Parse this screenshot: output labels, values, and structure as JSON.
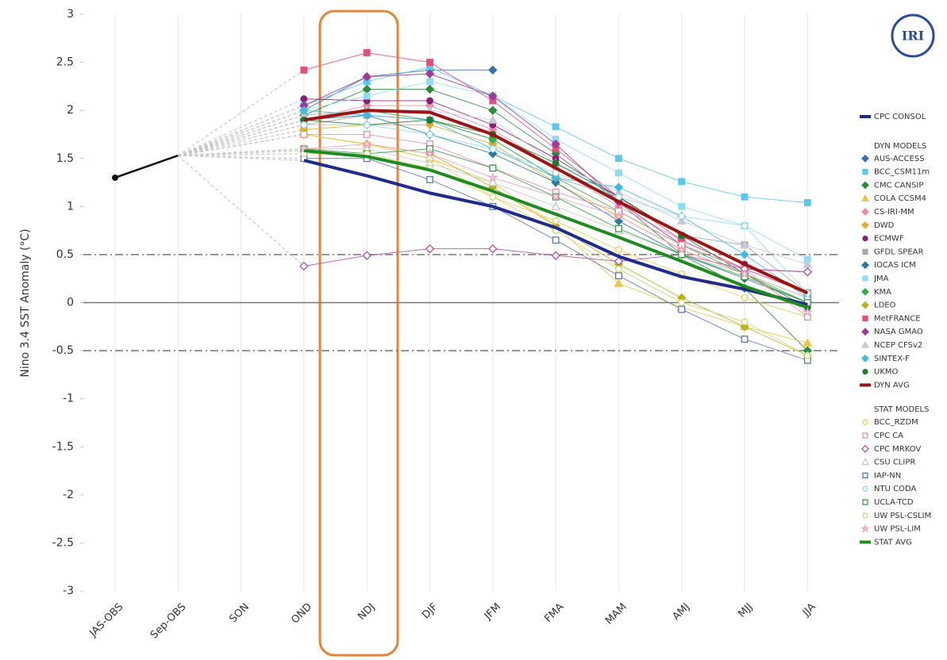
{
  "chart_data": {
    "type": "line",
    "y_label": "Nino 3.4 SST Anomaly (°C)",
    "logo": "IRI",
    "dyn_header": "DYN MODELS",
    "stat_header": "STAT MODELS",
    "categories": [
      "JAS-OBS",
      "Sep-OBS",
      "SON",
      "OND",
      "NDJ",
      "DJF",
      "JFM",
      "FMA",
      "MAM",
      "AMJ",
      "MJJ",
      "JJA"
    ],
    "ylim": [
      -3,
      3
    ],
    "yticks": [
      -3,
      -2.5,
      -2,
      -1.5,
      -1,
      -0.5,
      0,
      0.5,
      1,
      1.5,
      2,
      2.5,
      3
    ],
    "reference_lines": [
      0.5,
      -0.5
    ],
    "grid": "x",
    "observed": {
      "color": "#111111",
      "values": [
        1.3,
        1.53,
        null,
        null,
        null,
        null,
        null,
        null,
        null,
        null,
        null,
        null
      ]
    },
    "series": [
      {
        "name": "CPC CONSOL",
        "color": "#1f2a8a",
        "marker": "none",
        "width": 4,
        "values": [
          null,
          null,
          null,
          1.48,
          1.32,
          1.14,
          1.0,
          0.78,
          0.48,
          0.27,
          0.14,
          -0.02
        ]
      },
      {
        "name": "AUS-ACCESS",
        "color": "#3a6fb0",
        "marker": "diamond",
        "open": false,
        "width": 1,
        "values": [
          null,
          null,
          null,
          2.0,
          2.35,
          2.42,
          2.42,
          null,
          null,
          null,
          null,
          null
        ]
      },
      {
        "name": "BCC_CSM11m",
        "color": "#5bc8e8",
        "marker": "square",
        "open": false,
        "width": 1,
        "values": [
          null,
          null,
          null,
          2.05,
          2.3,
          2.45,
          2.15,
          1.83,
          1.5,
          1.26,
          1.1,
          1.04
        ]
      },
      {
        "name": "CMC CANSIP",
        "color": "#2e8b3e",
        "marker": "diamond",
        "open": false,
        "width": 1,
        "values": [
          null,
          null,
          null,
          1.95,
          2.22,
          2.22,
          2.0,
          1.55,
          1.05,
          0.5,
          0.15,
          -0.5
        ]
      },
      {
        "name": "COLA CCSM4",
        "color": "#e8c84a",
        "marker": "triangle",
        "open": false,
        "width": 1,
        "values": [
          null,
          null,
          null,
          1.75,
          1.65,
          1.5,
          1.25,
          0.8,
          0.2,
          -0.05,
          -0.25,
          -0.42
        ]
      },
      {
        "name": "CS-IRI-MM",
        "color": "#f08aa8",
        "marker": "diamond",
        "open": false,
        "width": 1,
        "values": [
          null,
          null,
          null,
          1.9,
          2.05,
          2.05,
          1.8,
          1.4,
          1.0,
          0.65,
          0.35,
          0.1
        ]
      },
      {
        "name": "DWD",
        "color": "#e0b030",
        "marker": "diamond",
        "open": false,
        "width": 1,
        "values": [
          null,
          null,
          null,
          1.8,
          1.85,
          1.85,
          1.65,
          1.25,
          0.9,
          0.55,
          0.3,
          0.05
        ]
      },
      {
        "name": "ECMWF",
        "color": "#8a1f7a",
        "marker": "circle",
        "open": false,
        "width": 1,
        "values": [
          null,
          null,
          null,
          2.12,
          2.1,
          2.1,
          1.85,
          1.5,
          1.1,
          0.7,
          0.4,
          0.1
        ]
      },
      {
        "name": "GFDL SPEAR",
        "color": "#a8a8a8",
        "marker": "square",
        "open": false,
        "width": 1,
        "values": [
          null,
          null,
          null,
          1.85,
          1.95,
          1.9,
          1.7,
          1.3,
          1.1,
          0.7,
          0.6,
          0.1
        ]
      },
      {
        "name": "IOCAS ICM",
        "color": "#2a7a9a",
        "marker": "diamond",
        "open": false,
        "width": 1,
        "values": [
          null,
          null,
          null,
          1.9,
          1.95,
          1.75,
          1.55,
          1.25,
          0.85,
          0.5,
          0.25,
          0.0
        ]
      },
      {
        "name": "JMA",
        "color": "#8fdcf0",
        "marker": "square",
        "open": false,
        "width": 1,
        "values": [
          null,
          null,
          null,
          2.0,
          2.15,
          2.3,
          2.15,
          1.7,
          1.35,
          1.0,
          0.8,
          0.45
        ]
      },
      {
        "name": "KMA",
        "color": "#3aaa4a",
        "marker": "diamond",
        "open": false,
        "width": 1,
        "values": [
          null,
          null,
          null,
          1.95,
          2.0,
          1.9,
          1.7,
          1.3,
          0.95,
          0.6,
          0.3,
          0.0
        ]
      },
      {
        "name": "LDEO",
        "color": "#b8b020",
        "marker": "diamond",
        "open": false,
        "width": 1,
        "values": [
          null,
          null,
          null,
          1.75,
          1.65,
          1.55,
          1.2,
          0.8,
          0.4,
          0.05,
          -0.25,
          -0.55
        ]
      },
      {
        "name": "MetFRANCE",
        "color": "#e0507a",
        "marker": "square",
        "open": false,
        "width": 1,
        "values": [
          null,
          null,
          null,
          2.42,
          2.6,
          2.5,
          2.1,
          1.6,
          1.1,
          0.65,
          0.35,
          0.1
        ]
      },
      {
        "name": "NASA GMAO",
        "color": "#a03a9a",
        "marker": "diamond",
        "open": false,
        "width": 1,
        "values": [
          null,
          null,
          null,
          2.05,
          2.35,
          2.38,
          2.15,
          1.65,
          1.05,
          0.6,
          0.35,
          0.32
        ]
      },
      {
        "name": "NCEP CFSv2",
        "color": "#c8c8d8",
        "marker": "triangle",
        "open": false,
        "width": 1,
        "values": [
          null,
          null,
          null,
          1.95,
          2.0,
          2.0,
          1.9,
          1.45,
          1.15,
          0.85,
          0.6,
          0.4
        ]
      },
      {
        "name": "SINTEX-F",
        "color": "#48b8e0",
        "marker": "diamond",
        "open": false,
        "width": 1,
        "values": [
          null,
          null,
          null,
          2.0,
          1.95,
          1.9,
          1.6,
          1.3,
          1.2,
          0.9,
          0.5,
          0.05
        ]
      },
      {
        "name": "UKMO",
        "color": "#1e7a30",
        "marker": "circle",
        "open": false,
        "width": 1,
        "values": [
          null,
          null,
          null,
          1.9,
          1.85,
          1.9,
          1.75,
          1.45,
          1.1,
          0.7,
          0.3,
          -0.05
        ]
      },
      {
        "name": "DYN AVG",
        "color": "#9a1414",
        "marker": "none",
        "width": 4,
        "values": [
          null,
          null,
          null,
          1.9,
          2.0,
          1.98,
          1.75,
          1.4,
          1.05,
          0.72,
          0.4,
          0.1
        ]
      },
      {
        "name": "BCC_RZDM",
        "color": "#e8d050",
        "marker": "circle",
        "open": true,
        "width": 1,
        "values": [
          null,
          null,
          null,
          1.75,
          1.65,
          1.5,
          1.1,
          0.85,
          0.55,
          0.3,
          0.05,
          -0.15
        ]
      },
      {
        "name": "CPC CA",
        "color": "#e890a8",
        "marker": "square",
        "open": true,
        "width": 1,
        "values": [
          null,
          null,
          null,
          1.75,
          1.75,
          1.65,
          1.4,
          1.15,
          0.95,
          0.6,
          0.35,
          -0.15
        ]
      },
      {
        "name": "CPC MRKOV",
        "color": "#b050a0",
        "marker": "diamond",
        "open": true,
        "width": 1,
        "values": [
          null,
          null,
          null,
          0.38,
          0.49,
          0.56,
          0.56,
          0.49,
          0.43,
          0.5,
          0.35,
          0.32
        ]
      },
      {
        "name": "CSU CLIPR",
        "color": "#c8c8c8",
        "marker": "triangle",
        "open": true,
        "width": 1,
        "values": [
          null,
          null,
          null,
          1.6,
          1.6,
          1.45,
          1.25,
          1.0,
          0.75,
          0.5,
          0.3,
          0.05
        ]
      },
      {
        "name": "IAP-NN",
        "color": "#5a78a8",
        "marker": "square",
        "open": true,
        "width": 1,
        "values": [
          null,
          null,
          null,
          1.5,
          1.5,
          1.28,
          1.0,
          0.65,
          0.28,
          -0.07,
          -0.38,
          -0.6
        ]
      },
      {
        "name": "NTU CODA",
        "color": "#90d8ec",
        "marker": "circle",
        "open": true,
        "width": 1,
        "values": [
          null,
          null,
          null,
          1.85,
          1.85,
          1.75,
          1.6,
          1.35,
          1.1,
          0.9,
          0.8,
          0.1
        ]
      },
      {
        "name": "UCLA-TCD",
        "color": "#3a9a4a",
        "marker": "square",
        "open": true,
        "width": 1,
        "values": [
          null,
          null,
          null,
          1.6,
          1.55,
          1.6,
          1.4,
          1.1,
          0.77,
          0.5,
          0.27,
          0.0
        ]
      },
      {
        "name": "UW PSL-CSLIM",
        "color": "#c8d870",
        "marker": "circle",
        "open": true,
        "width": 1,
        "values": [
          null,
          null,
          null,
          1.55,
          1.55,
          1.4,
          1.1,
          0.75,
          0.35,
          0.0,
          -0.2,
          -0.55
        ]
      },
      {
        "name": "UW PSL-LIM",
        "color": "#f0a0c0",
        "marker": "star",
        "open": true,
        "width": 1,
        "values": [
          null,
          null,
          null,
          1.6,
          1.65,
          1.55,
          1.3,
          1.1,
          0.9,
          0.55,
          0.3,
          -0.1
        ]
      },
      {
        "name": "STAT AVG",
        "color": "#1f8a1f",
        "marker": "none",
        "width": 4,
        "values": [
          null,
          null,
          null,
          1.58,
          1.52,
          1.38,
          1.16,
          0.92,
          0.68,
          0.43,
          0.17,
          -0.05
        ]
      }
    ]
  }
}
